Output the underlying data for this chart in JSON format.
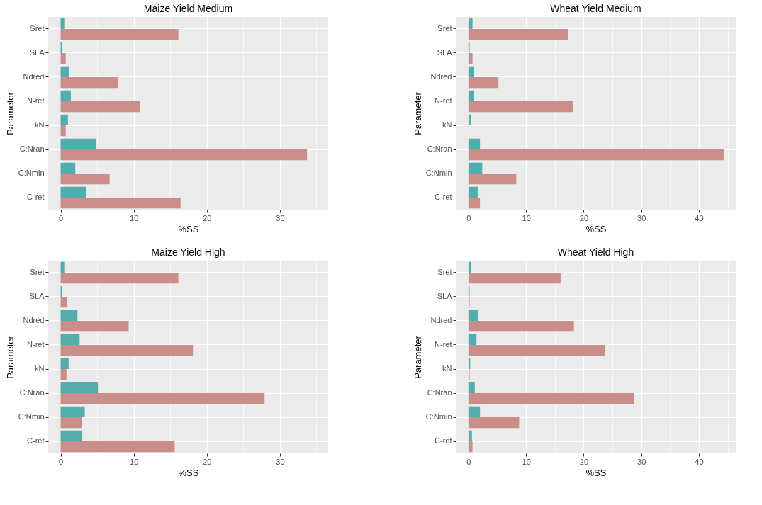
{
  "chart_data": [
    {
      "type": "bar",
      "orientation": "horizontal",
      "title": "Maize Yield Medium",
      "xlabel": "%SS",
      "ylabel": "Parameter",
      "grid": true,
      "categories": [
        "Sret",
        "SLA",
        "Ndred",
        "N-ret",
        "kN",
        "C:Nran",
        "C:Nmin",
        "C-ret"
      ],
      "series": [
        {
          "color": "#53adad",
          "values": [
            0.5,
            0.2,
            1.2,
            1.4,
            1.0,
            4.9,
            2.0,
            3.5
          ]
        },
        {
          "color": "#cb8d8a",
          "values": [
            16.1,
            0.7,
            7.8,
            10.9,
            0.7,
            33.7,
            6.7,
            16.4
          ]
        }
      ],
      "xlim": [
        -1.7,
        36.6
      ],
      "xticks": [
        0,
        {
          "value": 5,
          "label": null
        },
        10,
        {
          "value": 15,
          "label": null
        },
        20,
        {
          "value": 25,
          "label": null
        },
        30,
        {
          "value": 35,
          "label": null
        }
      ]
    },
    {
      "type": "bar",
      "orientation": "horizontal",
      "title": "Wheat Yield Medium",
      "xlabel": "%SS",
      "ylabel": "Parameter",
      "grid": true,
      "categories": [
        "Sret",
        "SLA",
        "Ndred",
        "N-ret",
        "kN",
        "C:Nran",
        "C:Nmin",
        "C-ret"
      ],
      "series": [
        {
          "color": "#53adad",
          "values": [
            0.7,
            0.2,
            1.0,
            0.9,
            0.5,
            2.0,
            2.4,
            1.6
          ]
        },
        {
          "color": "#cb8d8a",
          "values": [
            17.3,
            0.7,
            5.2,
            18.2,
            0,
            44.3,
            8.3,
            2.0
          ]
        }
      ],
      "xlim": [
        -2.2,
        46.4
      ],
      "xticks": [
        0,
        {
          "value": 5,
          "label": null
        },
        10,
        {
          "value": 15,
          "label": null
        },
        20,
        {
          "value": 25,
          "label": null
        },
        30,
        {
          "value": 35,
          "label": null
        },
        40,
        {
          "value": 45,
          "label": null
        }
      ]
    },
    {
      "type": "bar",
      "orientation": "horizontal",
      "title": "Maize Yield High",
      "xlabel": "%SS",
      "ylabel": "Parameter",
      "grid": true,
      "categories": [
        "Sret",
        "SLA",
        "Ndred",
        "N-ret",
        "kN",
        "C:Nran",
        "C:Nmin",
        "C-ret"
      ],
      "series": [
        {
          "color": "#53adad",
          "values": [
            0.5,
            0.2,
            2.3,
            2.6,
            1.1,
            5.1,
            3.3,
            2.9
          ]
        },
        {
          "color": "#cb8d8a",
          "values": [
            16.1,
            0.9,
            9.3,
            18.1,
            0.8,
            27.9,
            2.9,
            15.6
          ]
        }
      ],
      "xlim": [
        -1.7,
        36.6
      ],
      "xticks": [
        0,
        {
          "value": 5,
          "label": null
        },
        10,
        {
          "value": 15,
          "label": null
        },
        20,
        {
          "value": 25,
          "label": null
        },
        30,
        {
          "value": 35,
          "label": null
        }
      ]
    },
    {
      "type": "bar",
      "orientation": "horizontal",
      "title": "Wheat Yield High",
      "xlabel": "%SS",
      "ylabel": "Parameter",
      "grid": true,
      "categories": [
        "Sret",
        "SLA",
        "Ndred",
        "N-ret",
        "kN",
        "C:Nran",
        "C:Nmin",
        "C-ret"
      ],
      "series": [
        {
          "color": "#53adad",
          "values": [
            0.5,
            0.2,
            1.7,
            1.4,
            0.3,
            1.1,
            2.0,
            0.6
          ]
        },
        {
          "color": "#cb8d8a",
          "values": [
            16.0,
            0.2,
            18.3,
            23.7,
            0.2,
            28.8,
            8.8,
            0.7
          ]
        }
      ],
      "xlim": [
        -2.2,
        46.4
      ],
      "xticks": [
        0,
        {
          "value": 5,
          "label": null
        },
        10,
        {
          "value": 15,
          "label": null
        },
        20,
        {
          "value": 25,
          "label": null
        },
        30,
        {
          "value": 35,
          "label": null
        },
        40,
        {
          "value": 45,
          "label": null
        }
      ]
    }
  ]
}
